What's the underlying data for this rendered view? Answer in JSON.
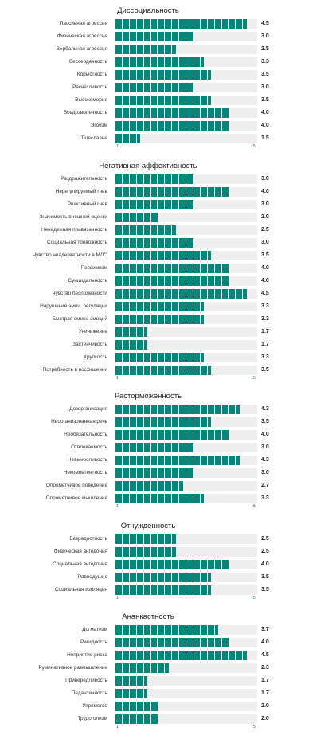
{
  "chart_data": [
    {
      "type": "bar",
      "orientation": "horizontal",
      "title": "Диссоциальность",
      "xlim": [
        1,
        5
      ],
      "x_tick_labels": [
        "1",
        "5"
      ],
      "categories": [
        "Пассивная агрессия",
        "Физическая агрессия",
        "Вербальная агрессия",
        "Бессердечность",
        "Корыстность",
        "Расчетливость",
        "Высокомерие",
        "Вседозволенность",
        "Эгоизм",
        "Тщеславие"
      ],
      "values": [
        4.5,
        3.0,
        2.5,
        3.3,
        3.5,
        3.0,
        3.5,
        4.0,
        4.0,
        1.5
      ],
      "value_labels": [
        "4.5",
        "3.0",
        "2.5",
        "3.3",
        "3.5",
        "3.0",
        "3.5",
        "4.0",
        "4.0",
        "1.5"
      ]
    },
    {
      "type": "bar",
      "orientation": "horizontal",
      "title": "Негативная аффективность",
      "xlim": [
        1,
        5
      ],
      "x_tick_labels": [
        "1",
        "5"
      ],
      "categories": [
        "Раздражительность",
        "Нерегулируемый гнев",
        "Реактивный гнев",
        "Значимость внешней оценки",
        "Ненадежная привязанность",
        "Социальная тревожность",
        "Чувство неадекватности в МЛО",
        "Пессимизм",
        "Суицидальность",
        "Чувство бесполезности",
        "Нарушение эмоц. регуляции",
        "Быстрая смена эмоций",
        "Уничижение",
        "Застенчивость",
        "Хрупкость",
        "Потребность в восхищении"
      ],
      "values": [
        3.0,
        4.0,
        3.0,
        2.0,
        2.5,
        3.0,
        3.5,
        4.0,
        4.0,
        4.5,
        3.3,
        3.3,
        1.7,
        1.7,
        3.3,
        3.5
      ],
      "value_labels": [
        "3.0",
        "4.0",
        "3.0",
        "2.0",
        "2.5",
        "3.0",
        "3.5",
        "4.0",
        "4.0",
        "4.5",
        "3.3",
        "3.3",
        "1.7",
        "1.7",
        "3.3",
        "3.5"
      ]
    },
    {
      "type": "bar",
      "orientation": "horizontal",
      "title": "Расторможенность",
      "xlim": [
        1,
        5
      ],
      "x_tick_labels": [
        "1",
        "5"
      ],
      "categories": [
        "Дезорганизация",
        "Неорганизованная речь",
        "Необязательность",
        "Отвлекаемость",
        "Невыносливость",
        "Некомпетентность",
        "Опрометчивое поведение",
        "Опрометчивое мышление"
      ],
      "values": [
        4.3,
        3.5,
        4.0,
        3.0,
        4.3,
        3.0,
        2.7,
        3.3
      ],
      "value_labels": [
        "4.3",
        "3.5",
        "4.0",
        "3.0",
        "4.3",
        "3.0",
        "2.7",
        "3.3"
      ]
    },
    {
      "type": "bar",
      "orientation": "horizontal",
      "title": "Отчужденность",
      "xlim": [
        1,
        5
      ],
      "x_tick_labels": [
        "1",
        "5"
      ],
      "categories": [
        "Безрадостность",
        "Физическая ангедония",
        "Социальная ангедония",
        "Равнодушие",
        "Социальная изоляция"
      ],
      "values": [
        2.5,
        2.5,
        4.0,
        3.5,
        3.5
      ],
      "value_labels": [
        "2.5",
        "2.5",
        "4.0",
        "3.5",
        "3.5"
      ]
    },
    {
      "type": "bar",
      "orientation": "horizontal",
      "title": "Ананкастность",
      "xlim": [
        1,
        5
      ],
      "x_tick_labels": [
        "1",
        "5"
      ],
      "categories": [
        "Догматизм",
        "Ригидность",
        "Неприятие риска",
        "Руминативное размышление",
        "Привередливость",
        "Педантичность",
        "Упрямство",
        "Трудоголизм"
      ],
      "values": [
        3.7,
        4.0,
        4.5,
        2.3,
        1.7,
        1.7,
        2.0,
        2.0
      ],
      "value_labels": [
        "3.7",
        "4.0",
        "4.5",
        "2.3",
        "1.7",
        "1.7",
        "2.0",
        "2.0"
      ]
    }
  ],
  "colors": {
    "bar": "#00897b",
    "track": "#eeeeee",
    "tick": "#00695c"
  }
}
